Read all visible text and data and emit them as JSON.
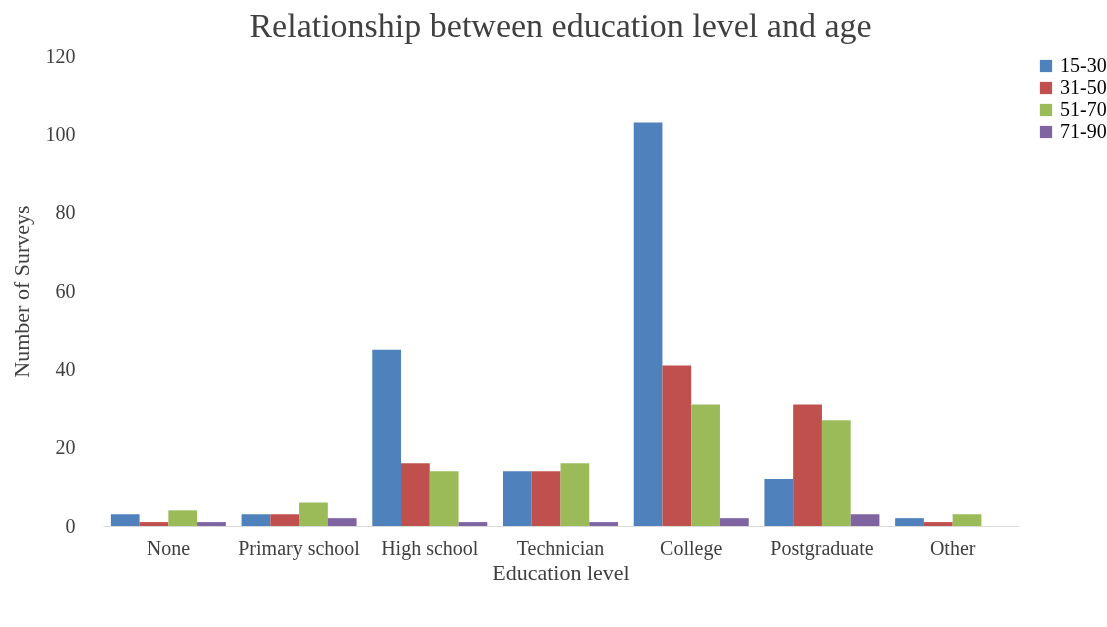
{
  "chart_data": {
    "type": "bar",
    "title": "Relationship between education level and age",
    "xlabel": "Education level",
    "ylabel": "Number of Surveys",
    "categories": [
      "None",
      "Primary school",
      "High school",
      "Technician",
      "College",
      "Postgraduate",
      "Other"
    ],
    "series": [
      {
        "name": "15-30",
        "color": "#4f81bd",
        "values": [
          3,
          3,
          45,
          14,
          103,
          12,
          2
        ]
      },
      {
        "name": "31-50",
        "color": "#c0504d",
        "values": [
          1,
          3,
          16,
          14,
          41,
          31,
          1
        ]
      },
      {
        "name": "51-70",
        "color": "#9bbb59",
        "values": [
          4,
          6,
          14,
          16,
          31,
          27,
          3
        ]
      },
      {
        "name": "71-90",
        "color": "#8064a2",
        "values": [
          1,
          2,
          1,
          1,
          2,
          3,
          0
        ]
      }
    ],
    "ylim": [
      0,
      120
    ],
    "yticks": [
      0,
      20,
      40,
      60,
      80,
      100,
      120
    ],
    "grid": false,
    "legend": "right"
  }
}
